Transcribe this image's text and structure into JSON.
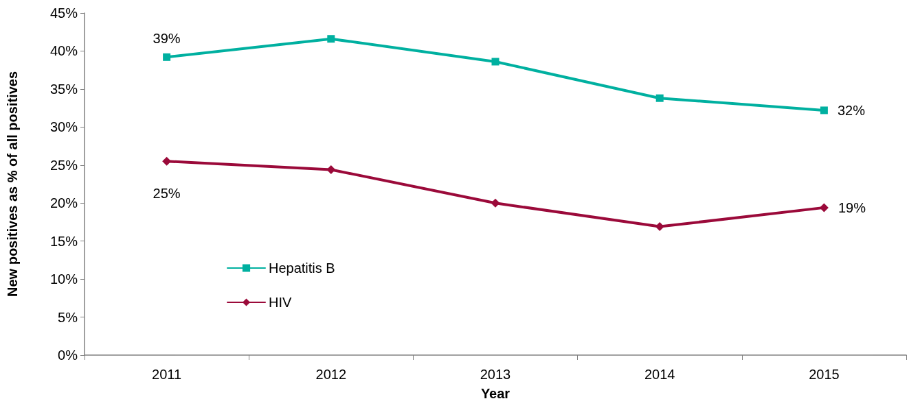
{
  "chart_data": {
    "type": "line",
    "xlabel": "Year",
    "ylabel": "New positives as % of all positives",
    "categories": [
      "2011",
      "2012",
      "2013",
      "2014",
      "2015"
    ],
    "series": [
      {
        "name": "Hepatitis B",
        "color": "#00b0a0",
        "marker": "square",
        "values": [
          39.2,
          41.6,
          38.6,
          33.8,
          32.2
        ],
        "value_labels": [
          "39%",
          null,
          null,
          null,
          "32%"
        ]
      },
      {
        "name": "HIV",
        "color": "#9b0a3a",
        "marker": "diamond",
        "values": [
          25.5,
          24.4,
          20.0,
          16.9,
          19.4
        ],
        "value_labels": [
          "25%",
          null,
          null,
          null,
          "19%"
        ]
      }
    ],
    "ylim": [
      0,
      45
    ],
    "yticks": [
      {
        "value": 0,
        "label": "0%"
      },
      {
        "value": 5,
        "label": "5%"
      },
      {
        "value": 10,
        "label": "10%"
      },
      {
        "value": 15,
        "label": "15%"
      },
      {
        "value": 20,
        "label": "20%"
      },
      {
        "value": 25,
        "label": "25%"
      },
      {
        "value": 30,
        "label": "30%"
      },
      {
        "value": 35,
        "label": "35%"
      },
      {
        "value": 40,
        "label": "40%"
      },
      {
        "value": 45,
        "label": "45%"
      }
    ],
    "grid": false,
    "legend": "left",
    "line_style": "solid"
  }
}
